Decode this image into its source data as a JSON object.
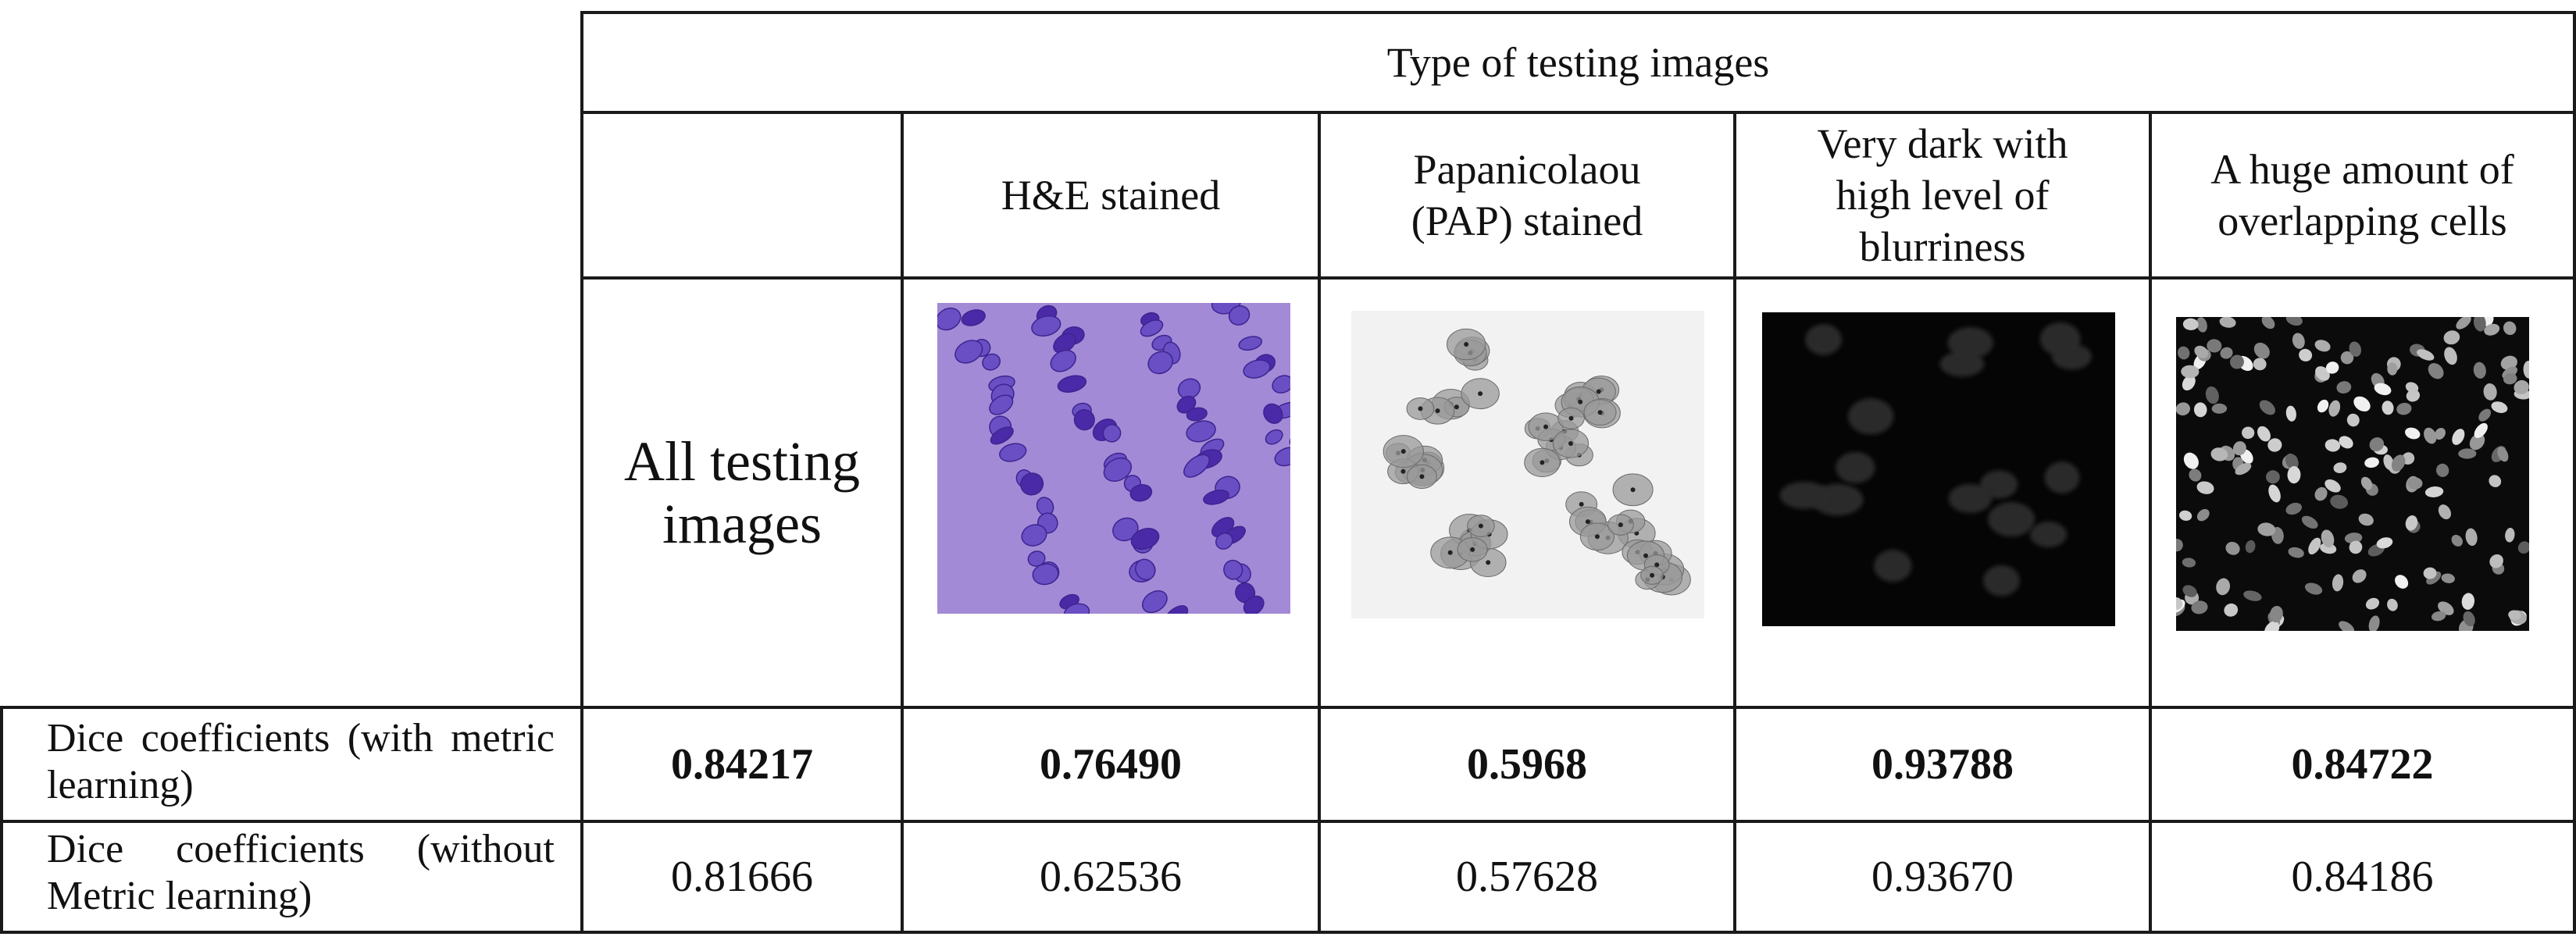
{
  "header": {
    "group_title": "Type of testing images",
    "columns": [
      "H&E stained",
      "Papanicolaou (PAP) stained",
      "Very dark with high level of blurriness",
      "A huge amount of overlapping cells"
    ],
    "first_column": "All testing images"
  },
  "rows": [
    {
      "label": "Dice coefficients (with metric learning)",
      "values": [
        "0.84217",
        "0.76490",
        "0.5968",
        "0.93788",
        "0.84722"
      ],
      "bold": true
    },
    {
      "label": "Dice coefficients (without Metric learning)",
      "values": [
        "0.81666",
        "0.62536",
        "0.57628",
        "0.93670",
        "0.84186"
      ],
      "bold": false
    }
  ],
  "images": [
    {
      "name": "he-stained-sample",
      "background": "#a28ad6",
      "nucleus_color": "#4b2aa8"
    },
    {
      "name": "pap-stained-sample",
      "background": "#f2f2f2",
      "nucleus_color": "#7a7a7a"
    },
    {
      "name": "dark-blurry-sample",
      "background": "#050505",
      "nucleus_color": "#2a2a2a"
    },
    {
      "name": "overlapping-cells-sample",
      "background": "#0b0b0b",
      "nucleus_color": "#9a9a9a"
    }
  ]
}
